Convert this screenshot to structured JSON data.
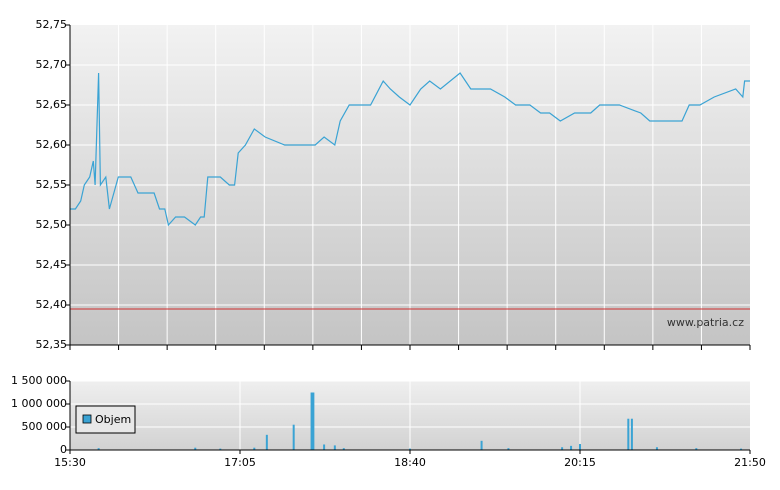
{
  "chart_data": [
    {
      "type": "line",
      "color": "#3aa3d4",
      "x": [
        "15:30",
        "15:33",
        "15:36",
        "15:38",
        "15:41",
        "15:43",
        "15:44",
        "15:46",
        "15:47",
        "15:50",
        "15:52",
        "15:57",
        "16:04",
        "16:08",
        "16:14",
        "16:17",
        "16:20",
        "16:23",
        "16:25",
        "16:29",
        "16:34",
        "16:40",
        "16:43",
        "16:45",
        "16:47",
        "16:54",
        "16:59",
        "17:02",
        "17:04",
        "17:08",
        "17:13",
        "17:19",
        "17:30",
        "17:39",
        "17:47",
        "17:52",
        "17:58",
        "18:01",
        "18:06",
        "18:11",
        "18:18",
        "18:25",
        "18:29",
        "18:34",
        "18:40",
        "18:46",
        "18:51",
        "18:57",
        "19:08",
        "19:14",
        "19:25",
        "19:33",
        "19:39",
        "19:47",
        "19:53",
        "19:58",
        "20:04",
        "20:12",
        "20:21",
        "20:26",
        "20:37",
        "20:49",
        "20:54",
        "21:05",
        "21:12",
        "21:16",
        "21:22",
        "21:30",
        "21:42",
        "21:46",
        "21:47",
        "21:50"
      ],
      "values": [
        52.52,
        52.52,
        52.53,
        52.55,
        52.56,
        52.58,
        52.55,
        52.69,
        52.55,
        52.56,
        52.52,
        52.56,
        52.56,
        52.54,
        52.54,
        52.54,
        52.52,
        52.52,
        52.5,
        52.51,
        52.51,
        52.5,
        52.51,
        52.51,
        52.56,
        52.56,
        52.55,
        52.55,
        52.59,
        52.6,
        52.62,
        52.61,
        52.6,
        52.6,
        52.6,
        52.61,
        52.6,
        52.63,
        52.65,
        52.65,
        52.65,
        52.68,
        52.67,
        52.66,
        52.65,
        52.67,
        52.68,
        52.67,
        52.69,
        52.67,
        52.67,
        52.66,
        52.65,
        52.65,
        52.64,
        52.64,
        52.63,
        52.64,
        52.64,
        52.65,
        52.65,
        52.64,
        52.63,
        52.63,
        52.63,
        52.65,
        52.65,
        52.66,
        52.67,
        52.66,
        52.68,
        52.68
      ],
      "ylim": [
        52.35,
        52.75
      ],
      "yticks": [
        {
          "value": 52.35,
          "label": "52,35"
        },
        {
          "value": 52.4,
          "label": "52,40"
        },
        {
          "value": 52.45,
          "label": "52,45"
        },
        {
          "value": 52.5,
          "label": "52,50"
        },
        {
          "value": 52.55,
          "label": "52,55"
        },
        {
          "value": 52.6,
          "label": "52,60"
        },
        {
          "value": 52.65,
          "label": "52,65"
        },
        {
          "value": 52.7,
          "label": "52,70"
        },
        {
          "value": 52.75,
          "label": "52,75"
        }
      ],
      "xlim": [
        "15:30",
        "21:50"
      ],
      "reference_line": 52.395,
      "reference_color": "#d03030",
      "annotation": "www.patria.cz",
      "grid": true
    },
    {
      "type": "bar",
      "series": [
        {
          "name": "Objem",
          "color": "#3aa3d4",
          "x": [
            "15:46",
            "16:40",
            "16:54",
            "17:13",
            "17:20",
            "17:35",
            "17:45",
            "17:46",
            "17:52",
            "17:58",
            "18:03",
            "18:40",
            "19:20",
            "19:35",
            "20:05",
            "20:10",
            "20:15",
            "20:42",
            "20:44",
            "20:58",
            "21:20",
            "21:45"
          ],
          "values": [
            40000,
            50000,
            30000,
            50000,
            330000,
            550000,
            1250000,
            1250000,
            120000,
            100000,
            40000,
            30000,
            200000,
            40000,
            60000,
            90000,
            130000,
            680000,
            680000,
            60000,
            40000,
            30000
          ]
        }
      ],
      "ylim": [
        0,
        1500000
      ],
      "yticks": [
        {
          "value": 0,
          "label": "0"
        },
        {
          "value": 500000,
          "label": "500 000"
        },
        {
          "value": 1000000,
          "label": "1 000 000"
        },
        {
          "value": 1500000,
          "label": "1 500 000"
        }
      ],
      "xlim": [
        "15:30",
        "21:50"
      ],
      "xticks": [
        "15:30",
        "17:05",
        "18:40",
        "20:15",
        "21:50"
      ],
      "grid": true
    }
  ]
}
